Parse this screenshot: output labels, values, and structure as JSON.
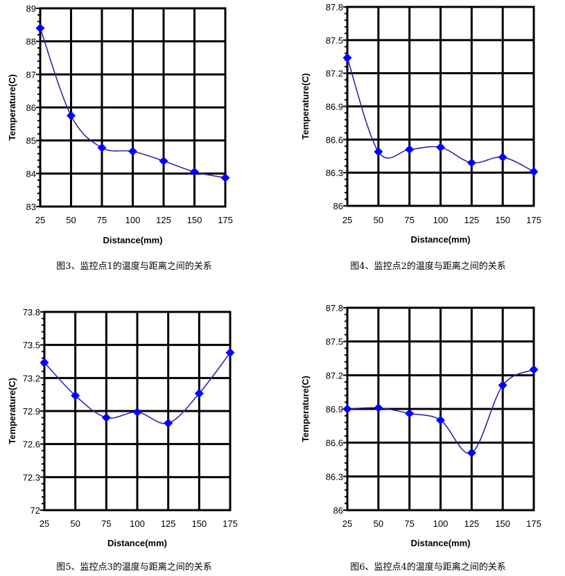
{
  "chart_data": [
    {
      "type": "line",
      "caption": "图3、监控点1的温度与距离之间的关系",
      "xlabel": "Distance(mm)",
      "ylabel": "Temperature(C)",
      "x": [
        25,
        50,
        75,
        100,
        125,
        150,
        175
      ],
      "xticks": [
        "25",
        "50",
        "75",
        "100",
        "125",
        "150",
        "175"
      ],
      "series": [
        {
          "name": "Monitoring point 1",
          "values": [
            88.4,
            85.75,
            84.78,
            84.67,
            84.38,
            84.05,
            83.87
          ]
        }
      ],
      "ylim": [
        83,
        89
      ],
      "yticks": [
        "83",
        "84",
        "85",
        "86",
        "87",
        "88",
        "89"
      ],
      "grid": true,
      "color": "#0000ff"
    },
    {
      "type": "line",
      "caption": "图4、监控点2的温度与距离之间的关系",
      "xlabel": "Distance(mm)",
      "ylabel": "Temperature(C)",
      "x": [
        25,
        50,
        75,
        100,
        125,
        150,
        175
      ],
      "xticks": [
        "25",
        "50",
        "75",
        "100",
        "125",
        "150",
        "175"
      ],
      "series": [
        {
          "name": "Monitoring point 2",
          "values": [
            87.34,
            86.49,
            86.51,
            86.53,
            86.39,
            86.44,
            86.31
          ]
        }
      ],
      "ylim": [
        86,
        87.8
      ],
      "yticks": [
        "86",
        "86.3",
        "86.6",
        "86.9",
        "87.2",
        "87.5",
        "87.8"
      ],
      "grid": true,
      "color": "#0000ff"
    },
    {
      "type": "line",
      "caption": "图5、监控点3的温度与距离之间的关系",
      "xlabel": "Distance(mm)",
      "ylabel": "Temperature(C)",
      "x": [
        25,
        50,
        75,
        100,
        125,
        150,
        175
      ],
      "xticks": [
        "25",
        "50",
        "75",
        "100",
        "125",
        "150",
        "175"
      ],
      "series": [
        {
          "name": "Monitoring point 3",
          "values": [
            73.34,
            73.04,
            72.84,
            72.89,
            72.79,
            73.06,
            73.43
          ]
        }
      ],
      "ylim": [
        72,
        73.8
      ],
      "yticks": [
        "72",
        "72.3",
        "72.6",
        "72.9",
        "73.2",
        "73.5",
        "73.8"
      ],
      "grid": true,
      "color": "#0000ff"
    },
    {
      "type": "line",
      "caption": "图6、监控点4的温度与距离之间的关系",
      "xlabel": "Distance(mm)",
      "ylabel": "Temperature(C)",
      "x": [
        25,
        50,
        75,
        100,
        125,
        150,
        175
      ],
      "xticks": [
        "25",
        "50",
        "75",
        "100",
        "125",
        "150",
        "175"
      ],
      "series": [
        {
          "name": "Monitoring point 4",
          "values": [
            86.9,
            86.91,
            86.86,
            86.8,
            86.51,
            87.11,
            87.25
          ]
        }
      ],
      "ylim": [
        86,
        87.8
      ],
      "yticks": [
        "86",
        "86.3",
        "86.6",
        "86.9",
        "87.2",
        "87.5",
        "87.8"
      ],
      "grid": true,
      "color": "#0000ff"
    }
  ]
}
